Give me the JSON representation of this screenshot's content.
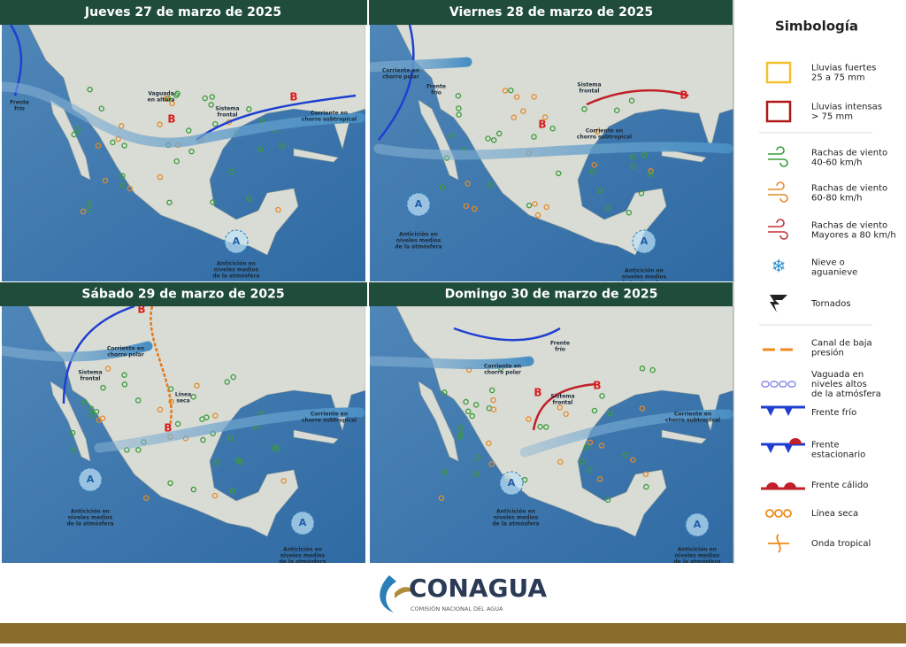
{
  "panels": [
    {
      "title": "Jueves 27 de marzo de 2025",
      "labels": [
        [
          "Frente",
          "frío"
        ],
        [
          "Vaguada",
          "en altura"
        ],
        [
          "Sistema",
          "frontal"
        ],
        [
          "Corriente en",
          "chorro subtropical"
        ],
        [
          "Anticición en",
          "niveles medios",
          "de la atmósfera"
        ]
      ],
      "symbols": [
        "B",
        "B",
        "A"
      ]
    },
    {
      "title": "Viernes 28 de marzo de 2025",
      "labels": [
        [
          "Corriente en",
          "chorro polar"
        ],
        [
          "Frente",
          "frío"
        ],
        [
          "Sistema",
          "frontal"
        ],
        [
          "Corriente en",
          "chorro subtropical"
        ],
        [
          "Anticición en",
          "niveles medios",
          "de la atmósfera"
        ],
        [
          "Anticición en",
          "niveles medios",
          "de la atmósfera"
        ]
      ],
      "symbols": [
        "B",
        "B",
        "A",
        "A"
      ]
    },
    {
      "title": "Sábado 29 de marzo de 2025",
      "labels": [
        [
          "Corriente en",
          "chorro polar"
        ],
        [
          "Sistema",
          "frontal"
        ],
        [
          "Línea",
          "seca"
        ],
        [
          "Corriente en",
          "chorro subtropical"
        ],
        [
          "Anticición en",
          "niveles medios",
          "de la atmósfera"
        ],
        [
          "Anticición en",
          "niveles medios",
          "de la atmósfera"
        ]
      ],
      "symbols": [
        "B",
        "B",
        "A",
        "A"
      ]
    },
    {
      "title": "Domingo 30 de marzo de 2025",
      "labels": [
        [
          "Frente",
          "frío"
        ],
        [
          "Corriente en",
          "chorro polar"
        ],
        [
          "Sistema",
          "frontal"
        ],
        [
          "Corriente en",
          "chorro subtropical"
        ],
        [
          "Anticición en",
          "niveles medios",
          "de la atmósfera"
        ],
        [
          "Anticición en",
          "niveles medios",
          "de la atmósfera"
        ]
      ],
      "symbols": [
        "B",
        "B",
        "A",
        "A"
      ]
    }
  ],
  "legend": {
    "title": "Simbología",
    "items": [
      [
        "Lluvias fuertes",
        "25 a 75 mm"
      ],
      [
        "Lluvias intensas",
        "> 75 mm"
      ],
      [
        "Rachas de viento",
        "40-60 km/h"
      ],
      [
        "Rachas de viento",
        "60-80 km/h"
      ],
      [
        "Rachas de viento",
        "Mayores a 80 km/h"
      ],
      [
        "Nieve o",
        "aguanieve"
      ],
      [
        "Tornados"
      ],
      [
        "Canal de baja",
        "presión"
      ],
      [
        "Vaguada en",
        "niveles altos",
        "de la atmósfera"
      ],
      [
        "Frente frío"
      ],
      [
        "Frente",
        "estacionario"
      ],
      [
        "Frente cálido"
      ],
      [
        "Línea seca"
      ],
      [
        "Onda tropical"
      ]
    ]
  },
  "footer": {
    "brand": "CONAGUA",
    "subtitle": "COMISIÓN NACIONAL DEL AGUA"
  }
}
